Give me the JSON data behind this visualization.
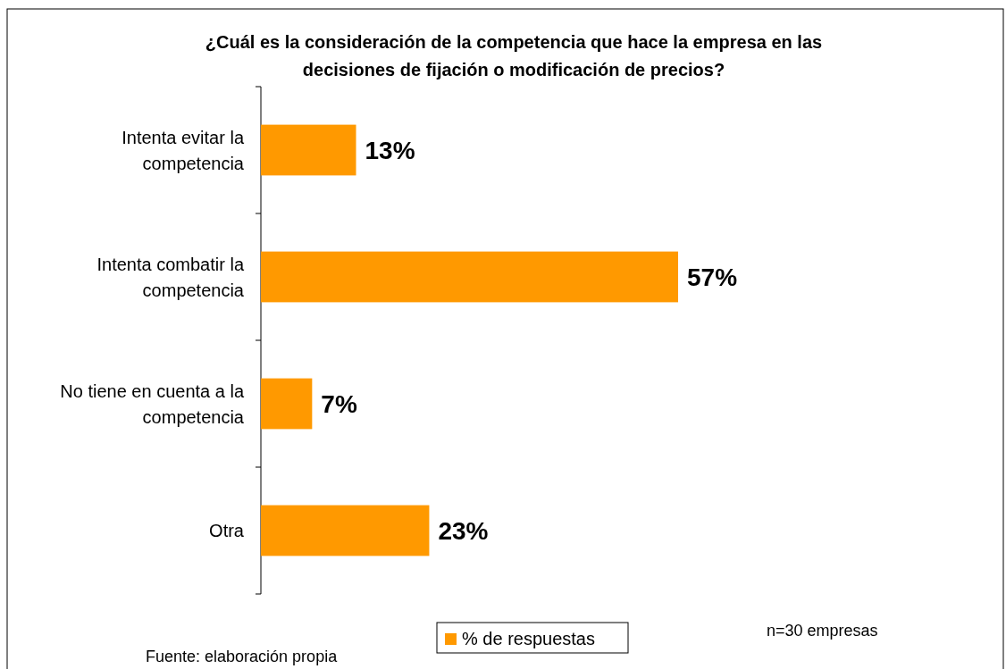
{
  "chart_data": {
    "type": "bar",
    "orientation": "horizontal",
    "title": "¿Cuál es la consideración de la competencia que hace la empresa en las decisiones de fijación o modificación de precios?",
    "categories": [
      "Intenta evitar la competencia",
      "Intenta combatir la competencia",
      "No tiene en cuenta a la competencia",
      "Otra"
    ],
    "series": [
      {
        "name": "% de respuestas",
        "color": "#ff9900",
        "values": [
          13,
          57,
          7,
          23
        ],
        "value_labels": [
          "13%",
          "57%",
          "7%",
          "23%"
        ]
      }
    ],
    "legend": "bottom",
    "annotations": [
      "n=30 empresas",
      "Fuente: elaboración propia"
    ]
  }
}
